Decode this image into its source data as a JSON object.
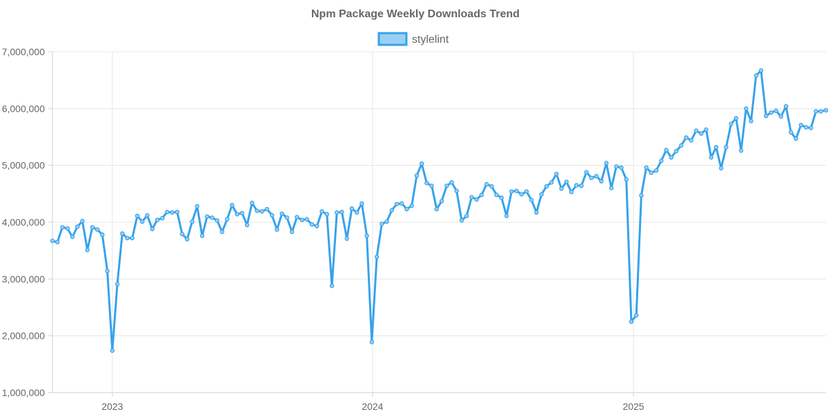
{
  "chart_data": {
    "type": "line",
    "title": "Npm Package Weekly Downloads Trend",
    "legend": {
      "position": "top-center"
    },
    "grid": true,
    "ylim": [
      1000000,
      7000000
    ],
    "y_ticks": [
      1000000,
      2000000,
      3000000,
      4000000,
      5000000,
      6000000,
      7000000
    ],
    "y_tick_labels": [
      "1,000,000",
      "2,000,000",
      "3,000,000",
      "4,000,000",
      "5,000,000",
      "6,000,000",
      "7,000,000"
    ],
    "xlim": [
      "2022-10-09",
      "2025-09-28"
    ],
    "x_ticks": [
      "2023-01-01",
      "2024-01-01",
      "2025-01-01"
    ],
    "x_tick_labels": [
      "2023",
      "2024",
      "2025"
    ],
    "colors": {
      "line": "#36a2eb",
      "fill": "#9ad0f5"
    },
    "series": [
      {
        "name": "stylelint",
        "x": [
          "2022-10-09",
          "2022-10-16",
          "2022-10-23",
          "2022-10-30",
          "2022-11-06",
          "2022-11-13",
          "2022-11-20",
          "2022-11-27",
          "2022-12-04",
          "2022-12-11",
          "2022-12-18",
          "2022-12-25",
          "2023-01-01",
          "2023-01-08",
          "2023-01-15",
          "2023-01-22",
          "2023-01-29",
          "2023-02-05",
          "2023-02-12",
          "2023-02-19",
          "2023-02-26",
          "2023-03-05",
          "2023-03-12",
          "2023-03-19",
          "2023-03-26",
          "2023-04-02",
          "2023-04-09",
          "2023-04-16",
          "2023-04-23",
          "2023-04-30",
          "2023-05-07",
          "2023-05-14",
          "2023-05-21",
          "2023-05-28",
          "2023-06-04",
          "2023-06-11",
          "2023-06-18",
          "2023-06-25",
          "2023-07-02",
          "2023-07-09",
          "2023-07-16",
          "2023-07-23",
          "2023-07-30",
          "2023-08-06",
          "2023-08-13",
          "2023-08-20",
          "2023-08-27",
          "2023-09-03",
          "2023-09-10",
          "2023-09-17",
          "2023-09-24",
          "2023-10-01",
          "2023-10-08",
          "2023-10-15",
          "2023-10-22",
          "2023-10-29",
          "2023-11-05",
          "2023-11-12",
          "2023-11-19",
          "2023-11-26",
          "2023-12-03",
          "2023-12-10",
          "2023-12-17",
          "2023-12-24",
          "2023-12-31",
          "2024-01-07",
          "2024-01-14",
          "2024-01-21",
          "2024-01-28",
          "2024-02-04",
          "2024-02-11",
          "2024-02-18",
          "2024-02-25",
          "2024-03-03",
          "2024-03-10",
          "2024-03-17",
          "2024-03-24",
          "2024-03-31",
          "2024-04-07",
          "2024-04-14",
          "2024-04-21",
          "2024-04-28",
          "2024-05-05",
          "2024-05-12",
          "2024-05-19",
          "2024-05-26",
          "2024-06-02",
          "2024-06-09",
          "2024-06-16",
          "2024-06-23",
          "2024-06-30",
          "2024-07-07",
          "2024-07-14",
          "2024-07-21",
          "2024-07-28",
          "2024-08-04",
          "2024-08-11",
          "2024-08-18",
          "2024-08-25",
          "2024-09-01",
          "2024-09-08",
          "2024-09-15",
          "2024-09-22",
          "2024-09-29",
          "2024-10-06",
          "2024-10-13",
          "2024-10-20",
          "2024-10-27",
          "2024-11-03",
          "2024-11-10",
          "2024-11-17",
          "2024-11-24",
          "2024-12-01",
          "2024-12-08",
          "2024-12-15",
          "2024-12-22",
          "2024-12-29",
          "2025-01-05",
          "2025-01-12",
          "2025-01-19",
          "2025-01-26",
          "2025-02-02",
          "2025-02-09",
          "2025-02-16",
          "2025-02-23",
          "2025-03-02",
          "2025-03-09",
          "2025-03-16",
          "2025-03-23",
          "2025-03-30",
          "2025-04-06",
          "2025-04-13",
          "2025-04-20",
          "2025-04-27",
          "2025-05-04",
          "2025-05-11",
          "2025-05-18",
          "2025-05-25",
          "2025-06-01",
          "2025-06-08",
          "2025-06-15",
          "2025-06-22",
          "2025-06-29",
          "2025-07-06",
          "2025-07-13",
          "2025-07-20",
          "2025-07-27",
          "2025-08-03",
          "2025-08-10",
          "2025-08-17",
          "2025-08-24",
          "2025-08-31",
          "2025-09-07",
          "2025-09-14",
          "2025-09-21",
          "2025-09-28"
        ],
        "values": [
          3670000,
          3650000,
          3910000,
          3890000,
          3740000,
          3920000,
          4020000,
          3510000,
          3910000,
          3870000,
          3780000,
          3140000,
          1740000,
          2910000,
          3800000,
          3720000,
          3720000,
          4110000,
          4010000,
          4120000,
          3880000,
          4040000,
          4070000,
          4180000,
          4170000,
          4180000,
          3790000,
          3700000,
          4010000,
          4280000,
          3760000,
          4100000,
          4080000,
          4030000,
          3830000,
          4050000,
          4300000,
          4140000,
          4160000,
          3950000,
          4340000,
          4200000,
          4190000,
          4230000,
          4120000,
          3870000,
          4150000,
          4080000,
          3830000,
          4090000,
          4040000,
          4050000,
          3960000,
          3930000,
          4190000,
          4140000,
          2880000,
          4170000,
          4180000,
          3710000,
          4240000,
          4170000,
          4330000,
          3760000,
          1890000,
          3390000,
          3970000,
          4010000,
          4210000,
          4320000,
          4330000,
          4230000,
          4290000,
          4820000,
          5030000,
          4690000,
          4640000,
          4230000,
          4370000,
          4640000,
          4700000,
          4550000,
          4030000,
          4110000,
          4440000,
          4400000,
          4480000,
          4670000,
          4630000,
          4480000,
          4430000,
          4110000,
          4540000,
          4550000,
          4490000,
          4540000,
          4390000,
          4170000,
          4490000,
          4630000,
          4700000,
          4850000,
          4590000,
          4710000,
          4530000,
          4650000,
          4640000,
          4880000,
          4780000,
          4810000,
          4720000,
          5040000,
          4600000,
          4980000,
          4960000,
          4750000,
          2250000,
          2360000,
          4470000,
          4960000,
          4870000,
          4910000,
          5080000,
          5270000,
          5140000,
          5250000,
          5350000,
          5490000,
          5440000,
          5610000,
          5560000,
          5630000,
          5140000,
          5320000,
          4950000,
          5320000,
          5730000,
          5830000,
          5260000,
          6000000,
          5780000,
          6580000,
          6670000,
          5870000,
          5930000,
          5960000,
          5860000,
          6040000,
          5580000,
          5470000,
          5710000,
          5670000,
          5660000,
          5950000,
          5950000,
          5970000
        ]
      }
    ]
  }
}
